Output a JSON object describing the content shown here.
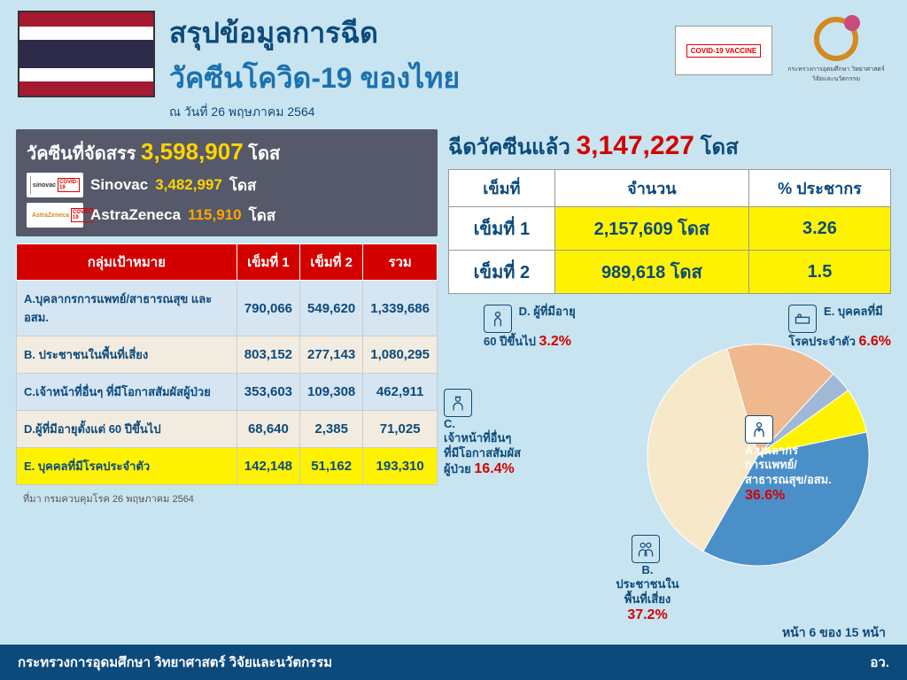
{
  "header": {
    "title_line1": "สรุปข้อมูลการฉีด",
    "title_line2": "วัคซีนโควิด-19 ของไทย",
    "date_line": "ณ วันที่ 26 พฤษภาคม 2564",
    "vaccine_label": "COVID-19 VACCINE",
    "logo_text": "กระทรวงการอุดมศึกษา วิทยาศาสตร์ วิจัยและนวัตกรรม"
  },
  "allocation": {
    "title_prefix": "วัคซีนที่จัดสรร",
    "title_value": "3,598,907",
    "title_unit": "โดส",
    "sinovac_label": "Sinovac",
    "sinovac_value": "3,482,997",
    "sinovac_unit": "โดส",
    "az_label": "AstraZeneca",
    "az_value": "115,910",
    "az_unit": "โดส"
  },
  "doses": {
    "title_prefix": "ฉีดวัคซีนแล้ว",
    "title_value": "3,147,227",
    "title_unit": "โดส",
    "columns": {
      "dose": "เข็มที่",
      "count": "จำนวน",
      "pct": "% ประชากร"
    },
    "rows": [
      {
        "dose": "เข็มที่ 1",
        "count": "2,157,609 โดส",
        "pct": "3.26"
      },
      {
        "dose": "เข็มที่ 2",
        "count": "989,618 โดส",
        "pct": "1.5"
      }
    ]
  },
  "target_table": {
    "columns": {
      "group": "กลุ่มเป้าหมาย",
      "d1": "เข็มที่ 1",
      "d2": "เข็มที่ 2",
      "total": "รวม"
    },
    "rows": [
      {
        "group": "A.บุคลากรการแพทย์/สาธารณสุข และ อสม.",
        "d1": "790,066",
        "d2": "549,620",
        "total": "1,339,686"
      },
      {
        "group": "B. ประชาชนในพื้นที่เสี่ยง",
        "d1": "803,152",
        "d2": "277,143",
        "total": "1,080,295"
      },
      {
        "group": "C.เจ้าหน้าที่อื่นๆ ที่มีโอกาสสัมผัสผู้ป่วย",
        "d1": "353,603",
        "d2": "109,308",
        "total": "462,911"
      },
      {
        "group": "D.ผู้ที่มีอายุตั้งแต่ 60 ปีขึ้นไป",
        "d1": "68,640",
        "d2": "2,385",
        "total": "71,025"
      },
      {
        "group": "E. บุคคลที่มีโรคประจำตัว",
        "d1": "142,148",
        "d2": "51,162",
        "total": "193,310"
      }
    ],
    "row_colors": [
      "#d5e5f2",
      "#f2ece0",
      "#d5e5f2",
      "#f2ece0",
      "#fff200"
    ]
  },
  "pie": {
    "type": "pie",
    "slices": [
      {
        "label": "A",
        "pct": 36.6,
        "color": "#4b8fc9"
      },
      {
        "label": "B",
        "pct": 37.2,
        "color": "#f6e8c8"
      },
      {
        "label": "C",
        "pct": 16.4,
        "color": "#f0b88f"
      },
      {
        "label": "D",
        "pct": 3.2,
        "color": "#9fb8d6"
      },
      {
        "label": "E",
        "pct": 6.6,
        "color": "#fff200"
      }
    ],
    "radius": 125,
    "start_degrees": -12,
    "callouts": {
      "a": {
        "title": "A.บุคลากรการแพทย์/สาธารณสุข/อสม.",
        "pct": "36.6%"
      },
      "b": {
        "title": "B. ประชาชนในพื้นที่เสี่ยง",
        "pct": "37.2%"
      },
      "c": {
        "title": "C. เจ้าหน้าที่อื่นๆ ที่มีโอกาสสัมผัสผู้ป่วย",
        "pct": "16.4%"
      },
      "d": {
        "title": "D. ผู้ที่มีอายุ 60 ปีขึ้นไป",
        "pct": "3.2%"
      },
      "e": {
        "title": "E. บุคคลที่มีโรคประจำตัว",
        "pct": "6.6%"
      }
    }
  },
  "source": "ที่มา กรมควบคุมโรค 26 พฤษภาคม 2564",
  "page_indicator": "หน้า 6 ของ 15 หน้า",
  "footer": {
    "left": "กระทรวงการอุดมศึกษา วิทยาศาสตร์ วิจัยและนวัตกรรม",
    "right": "อว."
  },
  "colors": {
    "bg": "#c8e4f0",
    "navy": "#0c4a7c",
    "blue": "#1b71b0",
    "red": "#d40000",
    "yellow": "#fff200",
    "gold": "#ffd400",
    "orange": "#ffa500",
    "darkbox": "#565969"
  }
}
